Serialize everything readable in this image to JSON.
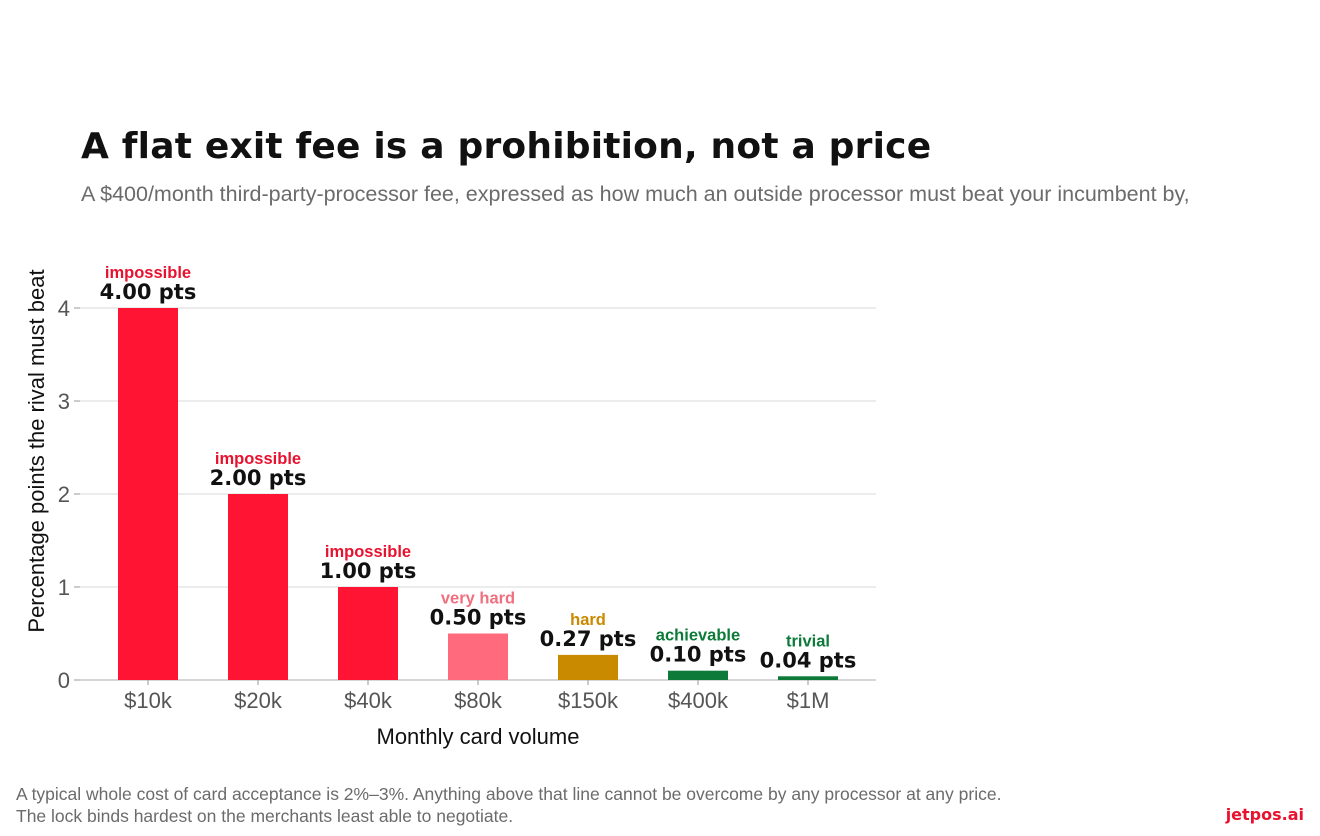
{
  "header": {
    "title": "A flat exit fee is a prohibition, not a price",
    "subtitle": "A $400/month third-party-processor fee, expressed as how much an outside processor must beat your incumbent by,"
  },
  "footer": {
    "note": "A typical whole cost of card acceptance is 2%–3%. Anything above that line cannot be overcome by any processor at any price. The lock binds hardest on the merchants least able to negotiate.",
    "brand": "jetpos.ai"
  },
  "chart_data": {
    "type": "bar",
    "xlabel": "Monthly card volume",
    "ylabel": "Percentage points the rival must beat",
    "ylim": [
      0,
      4.2
    ],
    "yticks": [
      0,
      1,
      2,
      3,
      4
    ],
    "grid": true,
    "categories": [
      "$10k",
      "$20k",
      "$40k",
      "$80k",
      "$150k",
      "$400k",
      "$1M"
    ],
    "values": [
      4.0,
      2.0,
      1.0,
      0.5,
      0.27,
      0.1,
      0.04
    ],
    "value_labels": [
      "4.00 pts",
      "2.00 pts",
      "1.00 pts",
      "0.50 pts",
      "0.27 pts",
      "0.10 pts",
      "0.04 pts"
    ],
    "ratings": [
      "impossible",
      "impossible",
      "impossible",
      "very hard",
      "hard",
      "achievable",
      "trivial"
    ],
    "colors": [
      "#ff1533",
      "#ff1533",
      "#ff1533",
      "#ff6b7c",
      "#c98a00",
      "#0d7a3a",
      "#0d7a3a"
    ],
    "rating_colors": [
      "#e8122f",
      "#e8122f",
      "#e8122f",
      "#f0707f",
      "#c98a00",
      "#0d7a3a",
      "#0d7a3a"
    ]
  }
}
